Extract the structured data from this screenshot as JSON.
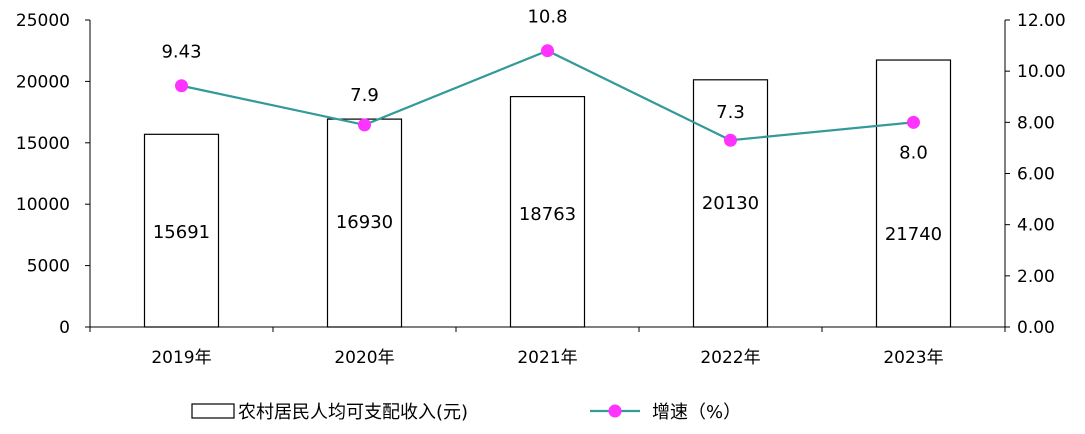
{
  "chart_data": {
    "type": "bar",
    "categories": [
      "2019年",
      "2020年",
      "2021年",
      "2022年",
      "2023年"
    ],
    "series": [
      {
        "name": "农村居民人均可支配收入(元)",
        "kind": "bar",
        "axis": "left",
        "values": [
          15691,
          16930,
          18763,
          20130,
          21740
        ],
        "labels": [
          "15691",
          "16930",
          "18763",
          "20130",
          "21740"
        ],
        "color": "#ffffff",
        "stroke": "#000000"
      },
      {
        "name": "增速（%）",
        "kind": "line",
        "axis": "right",
        "values": [
          9.43,
          7.9,
          10.8,
          7.3,
          8.0
        ],
        "labels": [
          "9.43",
          "7.9",
          "10.8",
          "7.3",
          "8.0"
        ],
        "color": "#339999",
        "marker_color": "#ff33ff"
      }
    ],
    "y_left": {
      "ylim": [
        0,
        25000
      ],
      "ticks": [
        "0",
        "5000",
        "10000",
        "15000",
        "20000",
        "25000"
      ]
    },
    "y_right": {
      "ylim": [
        0,
        12
      ],
      "ticks": [
        "0.00",
        "2.00",
        "4.00",
        "6.00",
        "8.00",
        "10.00",
        "12.00"
      ]
    },
    "title": "",
    "xlabel": "",
    "grid": false,
    "legend_position": "bottom-center"
  }
}
